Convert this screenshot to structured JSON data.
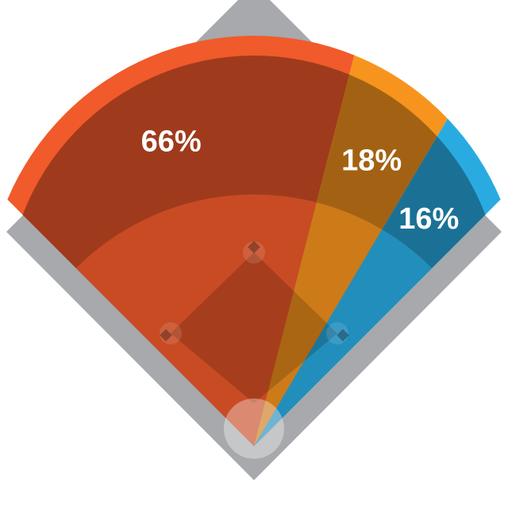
{
  "chart_data": {
    "type": "pie",
    "values": [
      66,
      18,
      16
    ],
    "value_labels": [
      "66%",
      "18%",
      "16%"
    ],
    "colors": [
      "#f15a2b",
      "#f7941d",
      "#29abe2"
    ]
  }
}
